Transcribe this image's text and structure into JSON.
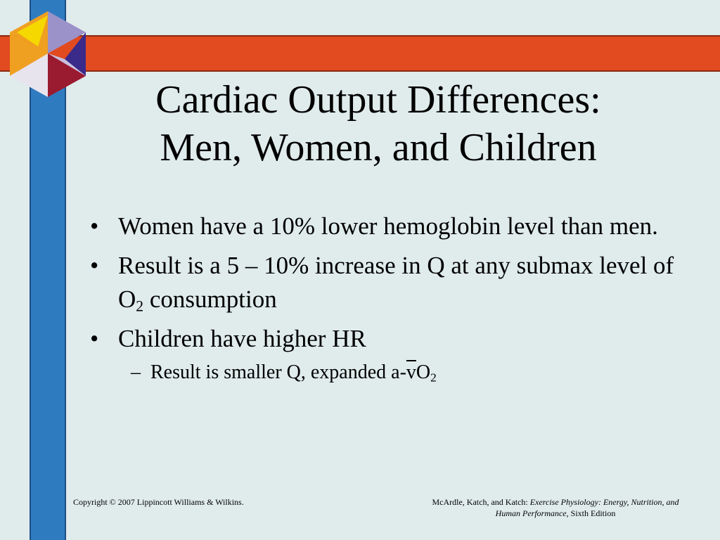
{
  "title": {
    "line1": "Cardiac Output Differences:",
    "line2": "Men, Women, and Children"
  },
  "bullets": [
    {
      "symbol": "•",
      "text": "Women have a 10% lower hemoglobin level than men."
    },
    {
      "symbol": "•",
      "pre": "Result is a 5 – 10% increase in Q at any submax level of O",
      "sub": "2",
      "post": " consumption"
    },
    {
      "symbol": "•",
      "text": "Children have higher HR"
    }
  ],
  "sub_bullet": {
    "symbol": "–",
    "pre": "Result is smaller Q, expanded a-",
    "overline": "v",
    "mid": "O",
    "sub": "2"
  },
  "footer": {
    "copyright": "Copyright © 2007 Lippincott Williams & Wilkins.",
    "authors": "McArdle, Katch, and Katch: ",
    "book_title": "Exercise Physiology: Energy, Nutrition, and Human Performance,",
    "edition": " Sixth Edition"
  },
  "colors": {
    "background": "#e0ebeb",
    "vertical_bar": "#2f7bc0",
    "horizontal_bar": "#e24a20"
  }
}
